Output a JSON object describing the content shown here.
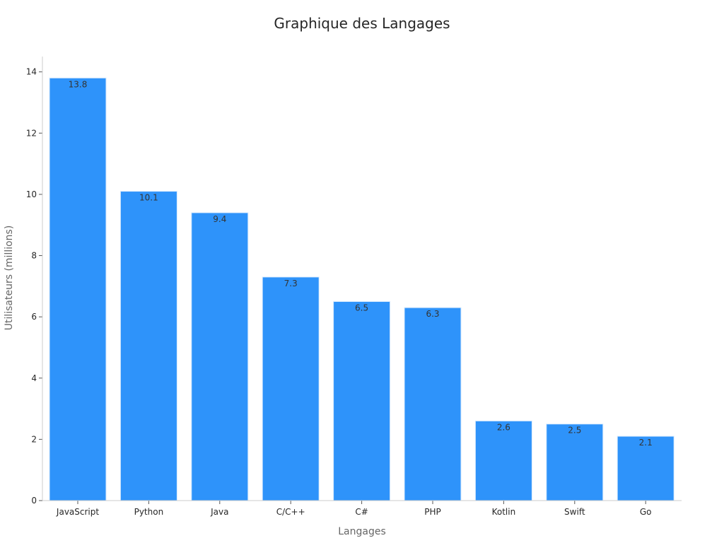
{
  "chart_data": {
    "type": "bar",
    "title": "Graphique des Langages",
    "xlabel": "Langages",
    "ylabel": "Utilisateurs (millions)",
    "categories": [
      "JavaScript",
      "Python",
      "Java",
      "C/C++",
      "C#",
      "PHP",
      "Kotlin",
      "Swift",
      "Go"
    ],
    "values": [
      13.8,
      10.1,
      9.4,
      7.3,
      6.5,
      6.3,
      2.6,
      2.5,
      2.1
    ],
    "data_labels": [
      "13.8",
      "10.1",
      "9.4",
      "7.3",
      "6.5",
      "6.3",
      "2.6",
      "2.5",
      "2.1"
    ],
    "ylim": [
      0,
      14.5
    ],
    "yticks": [
      0,
      2,
      4,
      6,
      8,
      10,
      12,
      14
    ],
    "ytick_labels": [
      "0",
      "2",
      "4",
      "6",
      "8",
      "10",
      "12",
      "14"
    ],
    "grid": false,
    "colors": {
      "bar": "#2e93fa",
      "axis": "#cccccc",
      "text": "#262626"
    }
  }
}
